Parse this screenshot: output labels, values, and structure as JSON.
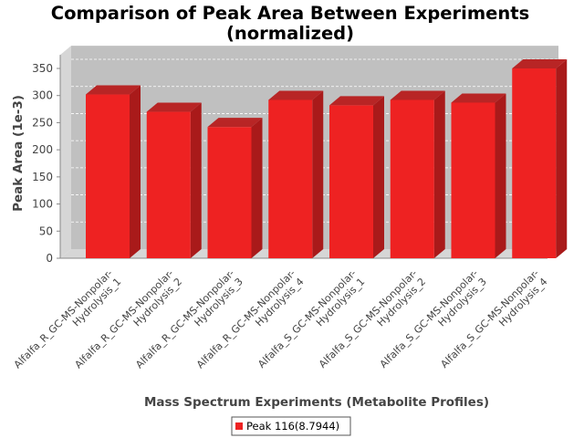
{
  "chart_data": {
    "type": "bar",
    "title_lines": [
      "Comparison of Peak Area Between Experiments",
      "(normalized)"
    ],
    "xlabel": "Mass Spectrum Experiments (Metabolite Profiles)",
    "ylabel": "Peak Area (1e-3)",
    "ylim": [
      0,
      375
    ],
    "yticks": [
      0,
      50,
      100,
      150,
      200,
      250,
      300,
      350
    ],
    "grid": true,
    "legend_position": "bottom",
    "categories": [
      [
        "Alfalfa_R_GC-MS-Nonpolar-",
        "Hydrolysis_1"
      ],
      [
        "Alfalfa_R_GC-MS-Nonpolar-",
        "Hydrolysis_2"
      ],
      [
        "Alfalfa_R_GC-MS-Nonpolar-",
        "Hydrolysis_3"
      ],
      [
        "Alfalfa_R_GC-MS-Nonpolar-",
        "Hydrolysis_4"
      ],
      [
        "Alfalfa_S_GC-MS-Nonpolar-",
        "Hydrolysis_1"
      ],
      [
        "Alfalfa_S_GC-MS-Nonpolar-",
        "Hydrolysis_2"
      ],
      [
        "Alfalfa_S_GC-MS-Nonpolar-",
        "Hydrolysis_3"
      ],
      [
        "Alfalfa_S_GC-MS-Nonpolar-",
        "Hydrolysis_4"
      ]
    ],
    "series": [
      {
        "name": "Peak 116(8.7944)",
        "color": "#ee2222",
        "values": [
          302,
          270,
          242,
          292,
          282,
          292,
          287,
          350
        ]
      }
    ]
  }
}
